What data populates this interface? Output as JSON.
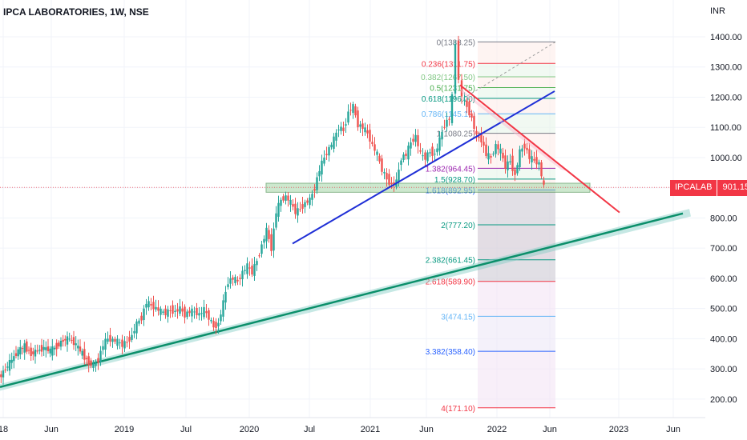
{
  "header": {
    "title": "IPCA LABORATORIES, 1W, NSE",
    "unit": "INR"
  },
  "price_tag": {
    "symbol": "IPCALAB",
    "price": "901.15"
  },
  "colors": {
    "up": "#26a69a",
    "down": "#ef5350",
    "blue_trend": "#1f2fd6",
    "green_trend": "#0b8f6a",
    "red_trend": "#f23645"
  },
  "chart_data": {
    "type": "candlestick",
    "title": "IPCA LABORATORIES, 1W, NSE",
    "ylabel": "INR",
    "ylim": [
      140,
      1440
    ],
    "y_ticks": [
      "1400.00",
      "1300.00",
      "1200.00",
      "1100.00",
      "1000.00",
      "900.00",
      "800.00",
      "700.00",
      "600.00",
      "500.00",
      "400.00",
      "300.00",
      "200.00"
    ],
    "x_ticks": [
      "18",
      "Jun",
      "2019",
      "Jul",
      "2020",
      "Jul",
      "2021",
      "Jun",
      "2022",
      "Jun",
      "2023",
      "Jun"
    ],
    "last_price": 901.15,
    "price_path": [
      [
        0,
        270
      ],
      [
        8,
        300
      ],
      [
        16,
        330
      ],
      [
        24,
        360
      ],
      [
        32,
        375
      ],
      [
        40,
        350
      ],
      [
        48,
        360
      ],
      [
        56,
        370
      ],
      [
        64,
        360
      ],
      [
        72,
        375
      ],
      [
        80,
        395
      ],
      [
        88,
        400
      ],
      [
        96,
        380
      ],
      [
        104,
        350
      ],
      [
        112,
        320
      ],
      [
        118,
        310
      ],
      [
        124,
        330
      ],
      [
        130,
        380
      ],
      [
        136,
        400
      ],
      [
        142,
        395
      ],
      [
        148,
        390
      ],
      [
        154,
        380
      ],
      [
        160,
        390
      ],
      [
        166,
        410
      ],
      [
        172,
        450
      ],
      [
        178,
        470
      ],
      [
        184,
        520
      ],
      [
        190,
        510
      ],
      [
        196,
        500
      ],
      [
        202,
        490
      ],
      [
        208,
        485
      ],
      [
        214,
        495
      ],
      [
        220,
        490
      ],
      [
        226,
        500
      ],
      [
        232,
        480
      ],
      [
        238,
        490
      ],
      [
        244,
        490
      ],
      [
        250,
        480
      ],
      [
        256,
        495
      ],
      [
        262,
        470
      ],
      [
        268,
        440
      ],
      [
        274,
        450
      ],
      [
        280,
        520
      ],
      [
        286,
        590
      ],
      [
        292,
        600
      ],
      [
        298,
        590
      ],
      [
        304,
        620
      ],
      [
        310,
        640
      ],
      [
        316,
        620
      ],
      [
        322,
        660
      ],
      [
        328,
        710
      ],
      [
        334,
        760
      ],
      [
        340,
        700
      ],
      [
        346,
        820
      ],
      [
        352,
        860
      ],
      [
        358,
        870
      ],
      [
        364,
        850
      ],
      [
        370,
        820
      ],
      [
        376,
        830
      ],
      [
        382,
        850
      ],
      [
        388,
        860
      ],
      [
        394,
        900
      ],
      [
        400,
        960
      ],
      [
        406,
        1000
      ],
      [
        412,
        1030
      ],
      [
        418,
        1060
      ],
      [
        424,
        1100
      ],
      [
        430,
        1090
      ],
      [
        436,
        1150
      ],
      [
        442,
        1170
      ],
      [
        448,
        1110
      ],
      [
        454,
        1100
      ],
      [
        460,
        1080
      ],
      [
        466,
        1040
      ],
      [
        472,
        1010
      ],
      [
        478,
        960
      ],
      [
        484,
        930
      ],
      [
        490,
        910
      ],
      [
        496,
        920
      ],
      [
        502,
        1000
      ],
      [
        508,
        1010
      ],
      [
        514,
        1050
      ],
      [
        520,
        1070
      ],
      [
        526,
        1010
      ],
      [
        532,
        1000
      ],
      [
        538,
        1020
      ],
      [
        544,
        1010
      ],
      [
        550,
        1060
      ],
      [
        556,
        1110
      ],
      [
        562,
        1130
      ],
      [
        566,
        1200
      ],
      [
        570,
        1383
      ],
      [
        574,
        1260
      ],
      [
        578,
        1200
      ],
      [
        584,
        1170
      ],
      [
        590,
        1130
      ],
      [
        596,
        1070
      ],
      [
        602,
        1060
      ],
      [
        608,
        1010
      ],
      [
        614,
        1000
      ],
      [
        620,
        1040
      ],
      [
        626,
        1020
      ],
      [
        632,
        970
      ],
      [
        638,
        990
      ],
      [
        644,
        940
      ],
      [
        650,
        1020
      ],
      [
        656,
        1040
      ],
      [
        662,
        1000
      ],
      [
        668,
        990
      ],
      [
        674,
        980
      ],
      [
        680,
        901
      ]
    ],
    "fibonacci": [
      {
        "label": "0(1383.25)",
        "level": 1383.25,
        "color": "#787b86"
      },
      {
        "label": "0.236(1311.75)",
        "level": 1311.75,
        "color": "#f23645"
      },
      {
        "label": "0.382(1267.50)",
        "level": 1267.5,
        "color": "#81c784"
      },
      {
        "label": "0.5(1231.75)",
        "level": 1231.75,
        "color": "#4caf50"
      },
      {
        "label": "0.618(1196.00)",
        "level": 1196.0,
        "color": "#089981"
      },
      {
        "label": "0.786(1145.10)",
        "level": 1145.1,
        "color": "#64b5f6"
      },
      {
        "label": "1(1080.25)",
        "level": 1080.25,
        "color": "#787b86"
      },
      {
        "label": "1.382(964.45)",
        "level": 964.45,
        "color": "#9c27b0"
      },
      {
        "label": "1.5(928.70)",
        "level": 928.7,
        "color": "#089981"
      },
      {
        "label": "1.618(892.95)",
        "level": 892.95,
        "color": "#2962ff"
      },
      {
        "label": "2(777.20)",
        "level": 777.2,
        "color": "#089981"
      },
      {
        "label": "2.382(661.45)",
        "level": 661.45,
        "color": "#089981"
      },
      {
        "label": "2.618(589.90)",
        "level": 589.9,
        "color": "#f23645"
      },
      {
        "label": "3(474.15)",
        "level": 474.15,
        "color": "#64b5f6"
      },
      {
        "label": "3.382(358.40)",
        "level": 358.4,
        "color": "#2962ff"
      },
      {
        "label": "4(171.10)",
        "level": 171.1,
        "color": "#f23645"
      }
    ],
    "grid": true
  }
}
